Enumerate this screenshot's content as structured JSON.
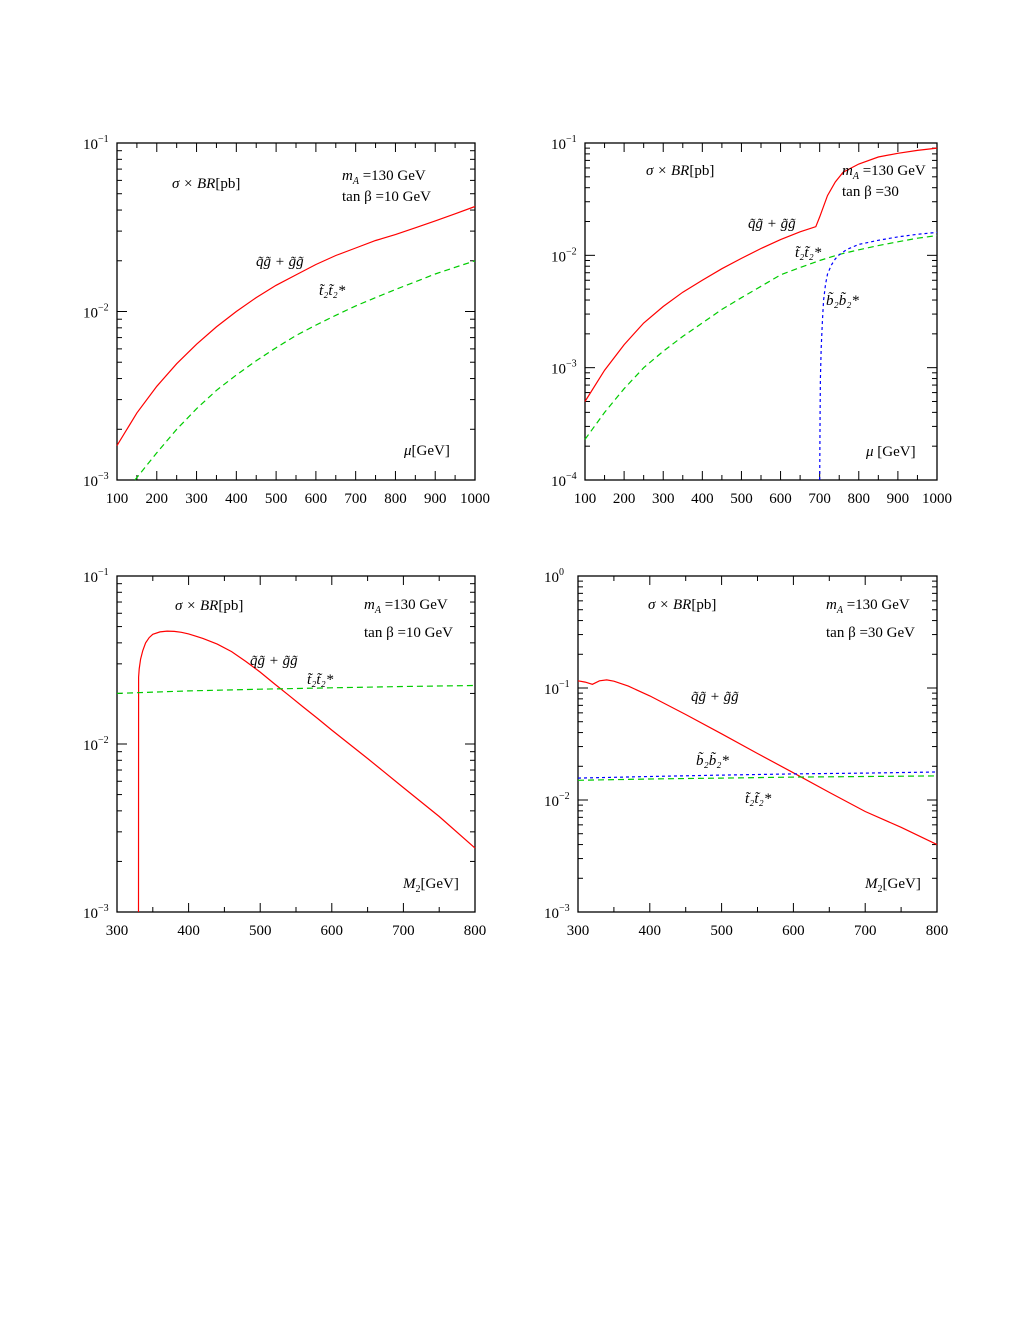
{
  "chart_data": [
    {
      "type": "line",
      "yscale": "log",
      "xlim": [
        100,
        1000
      ],
      "ylim": [
        0.001,
        0.1
      ],
      "xticks": [
        "100",
        "200",
        "300",
        "400",
        "500",
        "600",
        "700",
        "800",
        "900",
        "1000"
      ],
      "yticks": [
        {
          "base": "10",
          "exp": "−3"
        },
        {
          "base": "10",
          "exp": "−2"
        },
        {
          "base": "10",
          "exp": "−1"
        }
      ],
      "xlabel": {
        "sym": "μ",
        "rest": "[GeV]"
      },
      "ylabel": {
        "sym": "σ × BR",
        "rest": "[pb]"
      },
      "info": [
        {
          "sym": "m",
          "sub": "A",
          "rest": " =130 GeV"
        },
        {
          "sym": "tan β",
          "sub": "",
          "rest": " =10 GeV"
        }
      ],
      "series": [
        {
          "label_sym": "q̃g̃ + g̃g̃",
          "color": "#ff0000",
          "dash": "",
          "x": [
            100,
            150,
            200,
            250,
            300,
            350,
            400,
            450,
            500,
            550,
            600,
            650,
            700,
            750,
            800,
            850,
            900,
            950,
            1000
          ],
          "y": [
            0.0016,
            0.0025,
            0.0036,
            0.0049,
            0.0064,
            0.0081,
            0.01,
            0.0121,
            0.0143,
            0.0165,
            0.019,
            0.0215,
            0.0238,
            0.0264,
            0.0286,
            0.0314,
            0.0345,
            0.038,
            0.042
          ]
        },
        {
          "label_sym": "t̃₂t̃₂*",
          "color": "#00cc00",
          "dash": "6,4",
          "x": [
            145,
            200,
            250,
            300,
            350,
            400,
            450,
            500,
            550,
            600,
            650,
            700,
            750,
            800,
            850,
            900,
            950,
            1000
          ],
          "y": [
            0.001,
            0.00145,
            0.002,
            0.00265,
            0.0034,
            0.0042,
            0.0051,
            0.0061,
            0.0072,
            0.0083,
            0.0095,
            0.0108,
            0.0121,
            0.0135,
            0.015,
            0.0167,
            0.0183,
            0.02
          ]
        }
      ]
    },
    {
      "type": "line",
      "yscale": "log",
      "xlim": [
        100,
        1000
      ],
      "ylim": [
        0.0001,
        0.1
      ],
      "xticks": [
        "100",
        "200",
        "300",
        "400",
        "500",
        "600",
        "700",
        "800",
        "900",
        "1000"
      ],
      "yticks": [
        {
          "base": "10",
          "exp": "−4"
        },
        {
          "base": "10",
          "exp": "−3"
        },
        {
          "base": "10",
          "exp": "−2"
        },
        {
          "base": "10",
          "exp": "−1"
        }
      ],
      "xlabel": {
        "sym": "μ",
        "rest": " [GeV]"
      },
      "ylabel": {
        "sym": "σ × BR",
        "rest": "[pb]"
      },
      "info": [
        {
          "sym": "m",
          "sub": "A",
          "rest": " =130 GeV"
        },
        {
          "sym": "tan β",
          "sub": "",
          "rest": " =30"
        }
      ],
      "series": [
        {
          "label_sym": "q̃g̃ + g̃g̃",
          "color": "#ff0000",
          "dash": "",
          "x": [
            100,
            150,
            200,
            250,
            300,
            350,
            400,
            450,
            500,
            550,
            600,
            650,
            690,
            700,
            720,
            740,
            760,
            800,
            850,
            900,
            950,
            1000
          ],
          "y": [
            0.0005,
            0.00095,
            0.0016,
            0.0025,
            0.0035,
            0.0047,
            0.006,
            0.0076,
            0.0094,
            0.0115,
            0.0138,
            0.0162,
            0.018,
            0.022,
            0.034,
            0.045,
            0.055,
            0.065,
            0.075,
            0.081,
            0.086,
            0.09
          ]
        },
        {
          "label_sym": "t̃₂t̃₂*",
          "color": "#00cc00",
          "dash": "6,4",
          "x": [
            100,
            150,
            200,
            250,
            300,
            350,
            400,
            450,
            500,
            550,
            600,
            650,
            700,
            750,
            800,
            850,
            900,
            950,
            1000
          ],
          "y": [
            0.00023,
            0.0004,
            0.00065,
            0.001,
            0.0014,
            0.0019,
            0.0025,
            0.0033,
            0.0042,
            0.0053,
            0.0067,
            0.0078,
            0.009,
            0.0102,
            0.0112,
            0.0122,
            0.0132,
            0.0142,
            0.015
          ]
        },
        {
          "label_sym": "b̃₂b̃₂*",
          "color": "#0000ff",
          "dash": "3,3",
          "x": [
            700,
            700.5,
            701,
            702,
            704,
            707,
            710,
            715,
            720,
            730,
            740,
            750,
            770,
            800,
            850,
            900,
            950,
            1000
          ],
          "y": [
            0.0001,
            0.0002,
            0.0004,
            0.0008,
            0.0015,
            0.0026,
            0.004,
            0.0055,
            0.0068,
            0.0082,
            0.0093,
            0.0101,
            0.0113,
            0.0125,
            0.0136,
            0.0146,
            0.0154,
            0.016
          ]
        }
      ]
    },
    {
      "type": "line",
      "yscale": "log",
      "xlim": [
        300,
        800
      ],
      "ylim": [
        0.001,
        0.1
      ],
      "xticks": [
        "300",
        "400",
        "500",
        "600",
        "700",
        "800"
      ],
      "yticks": [
        {
          "base": "10",
          "exp": "−3"
        },
        {
          "base": "10",
          "exp": "−2"
        },
        {
          "base": "10",
          "exp": "−1"
        }
      ],
      "xlabel": {
        "sym": "M",
        "sub": "2",
        "rest": "[GeV]"
      },
      "ylabel": {
        "sym": "σ × BR",
        "rest": "[pb]"
      },
      "info": [
        {
          "sym": "m",
          "sub": "A",
          "rest": " =130 GeV"
        },
        {
          "sym": "tan β",
          "sub": "",
          "rest": " =10 GeV"
        }
      ],
      "series": [
        {
          "label_sym": "q̃g̃ + g̃g̃",
          "color": "#ff0000",
          "dash": "",
          "x": [
            330,
            330.2,
            331,
            333,
            336,
            340,
            345,
            350,
            360,
            370,
            380,
            390,
            400,
            420,
            440,
            460,
            480,
            500,
            520,
            540,
            560,
            580,
            600,
            650,
            700,
            750,
            800
          ],
          "y": [
            0.001,
            0.025,
            0.028,
            0.032,
            0.036,
            0.04,
            0.043,
            0.045,
            0.0465,
            0.047,
            0.0468,
            0.0462,
            0.0452,
            0.0425,
            0.0393,
            0.0355,
            0.031,
            0.0268,
            0.0228,
            0.0195,
            0.0166,
            0.0142,
            0.0121,
            0.0082,
            0.0055,
            0.0037,
            0.0024
          ]
        },
        {
          "label_sym": "t̃₂t̃₂*",
          "color": "#00cc00",
          "dash": "6,4",
          "x": [
            300,
            400,
            500,
            600,
            700,
            800
          ],
          "y": [
            0.02,
            0.0207,
            0.0212,
            0.0216,
            0.022,
            0.0223
          ]
        }
      ]
    },
    {
      "type": "line",
      "yscale": "log",
      "xlim": [
        300,
        800
      ],
      "ylim": [
        0.001,
        1
      ],
      "xticks": [
        "300",
        "400",
        "500",
        "600",
        "700",
        "800"
      ],
      "yticks": [
        {
          "base": "10",
          "exp": "−3"
        },
        {
          "base": "10",
          "exp": "−2"
        },
        {
          "base": "10",
          "exp": "−1"
        },
        {
          "base": "10",
          "exp": "0"
        }
      ],
      "xlabel": {
        "sym": "M",
        "sub": "2",
        "rest": "[GeV]"
      },
      "ylabel": {
        "sym": "σ × BR",
        "rest": "[pb]"
      },
      "info": [
        {
          "sym": "m",
          "sub": "A",
          "rest": " =130 GeV"
        },
        {
          "sym": "tan β",
          "sub": "",
          "rest": " =30 GeV"
        }
      ],
      "series": [
        {
          "label_sym": "q̃g̃ + g̃g̃",
          "color": "#ff0000",
          "dash": "",
          "x": [
            300,
            310,
            320,
            330,
            340,
            350,
            370,
            400,
            450,
            500,
            550,
            600,
            650,
            700,
            750,
            800
          ],
          "y": [
            0.116,
            0.113,
            0.108,
            0.116,
            0.118,
            0.115,
            0.104,
            0.085,
            0.058,
            0.039,
            0.026,
            0.0175,
            0.0117,
            0.0079,
            0.0057,
            0.004
          ]
        },
        {
          "label_sym": "b̃₂b̃₂*",
          "color": "#0000ff",
          "dash": "3,3",
          "x": [
            300,
            400,
            500,
            600,
            700,
            800
          ],
          "y": [
            0.0157,
            0.0162,
            0.0167,
            0.0171,
            0.0174,
            0.0178
          ]
        },
        {
          "label_sym": "t̃₂t̃₂*",
          "color": "#00cc00",
          "dash": "6,4",
          "x": [
            300,
            400,
            500,
            600,
            700,
            800
          ],
          "y": [
            0.015,
            0.0154,
            0.0157,
            0.016,
            0.0162,
            0.0164
          ]
        }
      ]
    }
  ]
}
